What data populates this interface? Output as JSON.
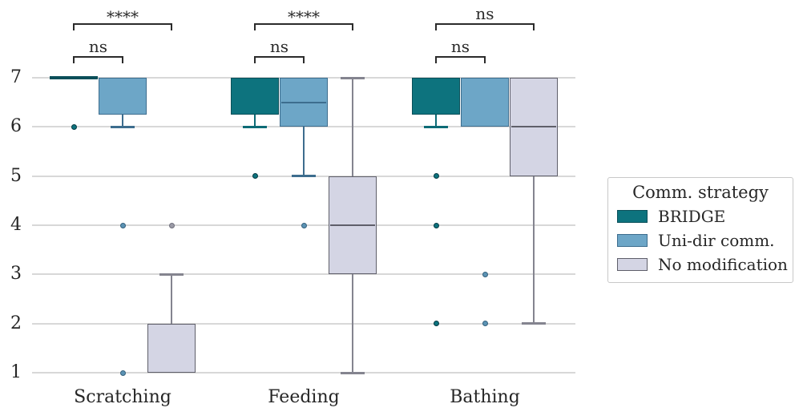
{
  "chart_data": {
    "type": "boxplot",
    "title": "",
    "categories": [
      "Scratching",
      "Feeding",
      "Bathing"
    ],
    "y_axis": {
      "min": 1,
      "max": 7,
      "ticks": [
        7,
        6,
        5,
        4,
        3,
        2,
        1
      ]
    },
    "grid": "horizontal",
    "legend": {
      "title": "Comm. strategy",
      "position": "center-right"
    },
    "series": [
      {
        "name": "BRIDGE",
        "fill": "#0d737e",
        "edge": "#0a4f59",
        "whisker": "#0d6b76",
        "dot_fill": "#0d737e",
        "dot_edge": "#063a42",
        "boxes": [
          {
            "category": "Scratching",
            "q1": 7,
            "median": 7,
            "q3": 7,
            "whisker_low": 7,
            "whisker_high": 7,
            "outliers": [
              6
            ]
          },
          {
            "category": "Feeding",
            "q1": 6.25,
            "median": 7,
            "q3": 7,
            "whisker_low": 6,
            "whisker_high": 7,
            "outliers": [
              5
            ]
          },
          {
            "category": "Bathing",
            "q1": 6.25,
            "median": 7,
            "q3": 7,
            "whisker_low": 6,
            "whisker_high": 7,
            "outliers": [
              5,
              4,
              2
            ]
          }
        ]
      },
      {
        "name": "Uni-dir comm.",
        "fill": "#6da6c7",
        "edge": "#3d6d8e",
        "whisker": "#3d6d8e",
        "dot_fill": "#5b93b4",
        "dot_edge": "#35617d",
        "boxes": [
          {
            "category": "Scratching",
            "q1": 6.25,
            "median": 7,
            "q3": 7,
            "whisker_low": 6,
            "whisker_high": 7,
            "outliers": [
              4,
              1
            ]
          },
          {
            "category": "Feeding",
            "q1": 6,
            "median": 6.5,
            "q3": 7,
            "whisker_low": 5,
            "whisker_high": 7,
            "outliers": [
              4
            ]
          },
          {
            "category": "Bathing",
            "q1": 6,
            "median": 7,
            "q3": 7,
            "whisker_low": 6,
            "whisker_high": 7,
            "outliers": [
              3,
              2
            ]
          }
        ]
      },
      {
        "name": "No modification",
        "fill": "#d4d5e4",
        "edge": "#5f5f6a",
        "whisker": "#84848f",
        "dot_fill": "#9a9aa6",
        "dot_edge": "#6f6f7c",
        "boxes": [
          {
            "category": "Scratching",
            "q1": 1,
            "median": 1,
            "q3": 2,
            "whisker_low": 1,
            "whisker_high": 3,
            "outliers": [
              4
            ]
          },
          {
            "category": "Feeding",
            "q1": 3,
            "median": 4,
            "q3": 5,
            "whisker_low": 1,
            "whisker_high": 7,
            "outliers": []
          },
          {
            "category": "Bathing",
            "q1": 5,
            "median": 6,
            "q3": 7,
            "whisker_low": 2,
            "whisker_high": 7,
            "outliers": []
          }
        ]
      }
    ],
    "significance": [
      {
        "category": "Scratching",
        "comparisons": [
          {
            "a": 0,
            "b": 1,
            "label": "ns",
            "level": 0
          },
          {
            "a": 0,
            "b": 2,
            "label": "****",
            "level": 1
          }
        ]
      },
      {
        "category": "Feeding",
        "comparisons": [
          {
            "a": 0,
            "b": 1,
            "label": "ns",
            "level": 0
          },
          {
            "a": 0,
            "b": 2,
            "label": "****",
            "level": 1
          }
        ]
      },
      {
        "category": "Bathing",
        "comparisons": [
          {
            "a": 0,
            "b": 1,
            "label": "ns",
            "level": 0
          },
          {
            "a": 0,
            "b": 2,
            "label": "ns",
            "level": 1
          }
        ]
      }
    ]
  }
}
